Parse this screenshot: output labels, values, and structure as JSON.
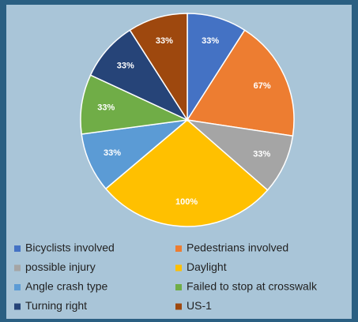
{
  "chart_data": {
    "type": "pie",
    "categories": [
      "Bicyclists involved",
      "Pedestrians involved",
      "possible injury",
      "Daylight",
      "Angle crash type",
      "Failed to stop at crosswalk",
      "Turning right",
      "US-1"
    ],
    "values": [
      33,
      67,
      33,
      100,
      33,
      33,
      33,
      33
    ],
    "value_labels": [
      "33%",
      "67%",
      "33%",
      "100%",
      "33%",
      "33%",
      "33%",
      "33%"
    ],
    "colors": [
      "#4472c4",
      "#ed7d31",
      "#a5a5a5",
      "#ffc000",
      "#5b9bd5",
      "#70ad47",
      "#264478",
      "#9e480e"
    ],
    "legend": "bottom"
  }
}
